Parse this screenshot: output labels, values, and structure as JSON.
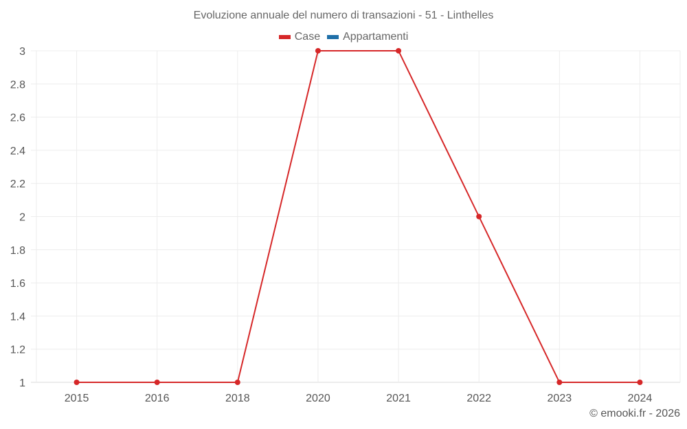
{
  "title": "Evoluzione annuale del numero di transazioni - 51 - Linthelles",
  "legend": [
    {
      "label": "Case",
      "color": "#d62728"
    },
    {
      "label": "Appartamenti",
      "color": "#1f6fa8"
    }
  ],
  "credit": "© emooki.fr - 2026",
  "chart_data": {
    "type": "line",
    "title": "Evoluzione annuale del numero di transazioni - 51 - Linthelles",
    "xlabel": "",
    "ylabel": "",
    "categories": [
      "2015",
      "2016",
      "2018",
      "2020",
      "2021",
      "2022",
      "2023",
      "2024"
    ],
    "series": [
      {
        "name": "Case",
        "color": "#d62728",
        "values": [
          1,
          1,
          1,
          3,
          3,
          2,
          1,
          1
        ]
      },
      {
        "name": "Appartamenti",
        "color": "#1f6fa8",
        "values": []
      }
    ],
    "ylim": [
      1,
      3
    ],
    "yticks": [
      "1",
      "1.2",
      "1.4",
      "1.6",
      "1.8",
      "2",
      "2.2",
      "2.4",
      "2.6",
      "2.8",
      "3"
    ],
    "grid": true,
    "legend_position": "top"
  }
}
